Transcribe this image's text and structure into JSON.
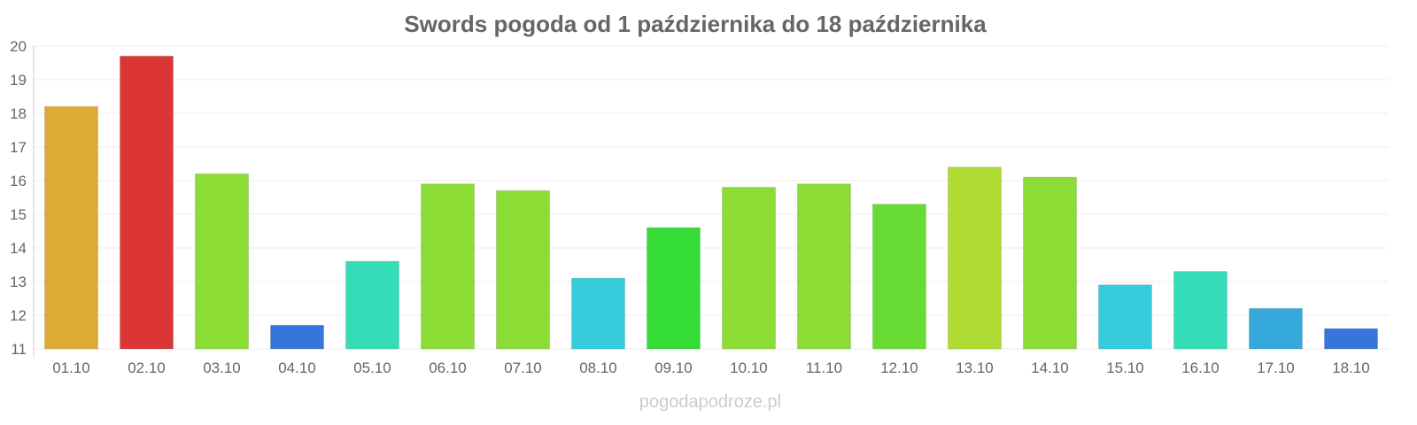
{
  "chart_data": {
    "type": "bar",
    "title": "Swords pogoda od 1 października do 18 października",
    "xlabel": "",
    "ylabel": "",
    "ylim": [
      11,
      20
    ],
    "yticks": [
      11,
      12,
      13,
      14,
      15,
      16,
      17,
      18,
      19,
      20
    ],
    "grid": true,
    "categories": [
      "01.10",
      "02.10",
      "03.10",
      "04.10",
      "05.10",
      "06.10",
      "07.10",
      "08.10",
      "09.10",
      "10.10",
      "11.10",
      "12.10",
      "13.10",
      "14.10",
      "15.10",
      "16.10",
      "17.10",
      "18.10"
    ],
    "values": [
      18.2,
      19.7,
      16.2,
      11.7,
      13.6,
      15.9,
      15.7,
      13.1,
      14.6,
      15.8,
      15.9,
      15.3,
      16.4,
      16.1,
      12.9,
      13.3,
      12.2,
      11.6
    ],
    "colors": [
      "#dcaa35",
      "#dc3535",
      "#8bdc35",
      "#3575dc",
      "#35dcb8",
      "#8bdc35",
      "#8bdc35",
      "#35cddc",
      "#35dc35",
      "#8bdc35",
      "#8bdc35",
      "#68dc35",
      "#aedc35",
      "#8bdc35",
      "#35cddc",
      "#35dcb8",
      "#35a8dc",
      "#3575dc"
    ]
  },
  "watermark": "pogodapodroze.pl"
}
